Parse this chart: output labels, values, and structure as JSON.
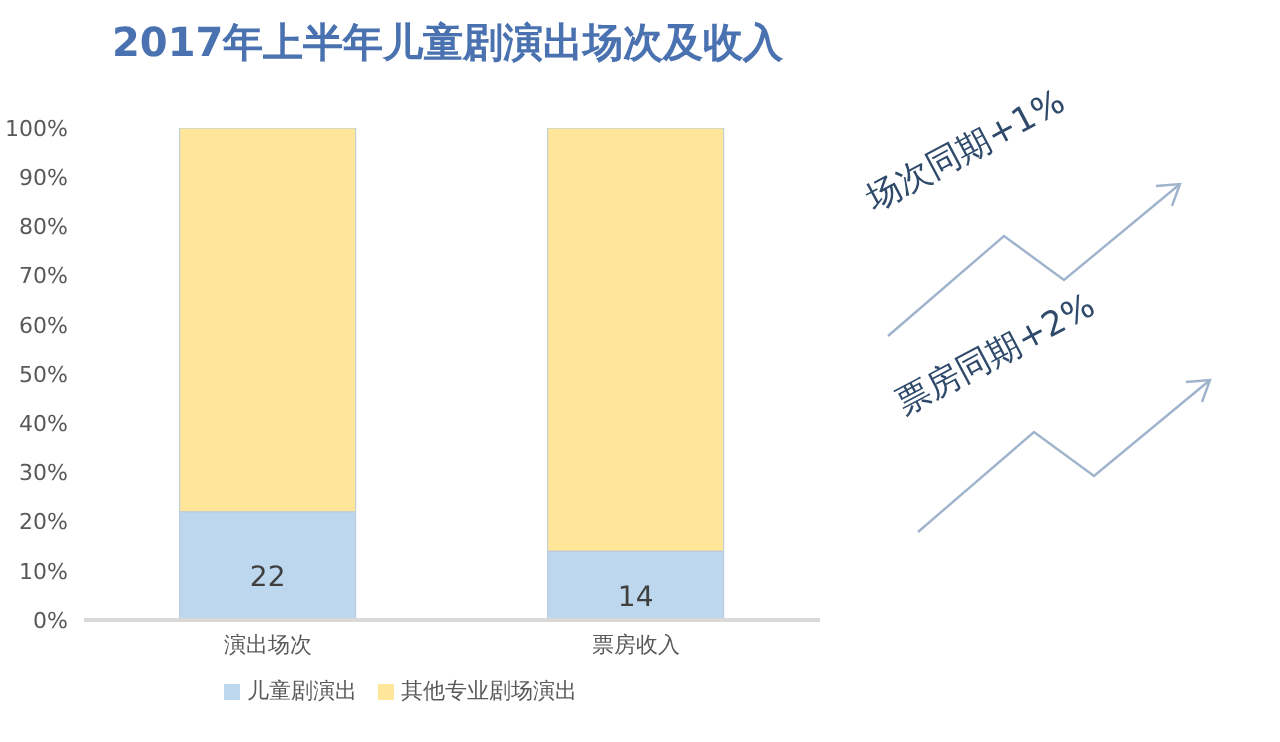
{
  "chart_data": {
    "type": "bar",
    "title": "2017年上半年儿童剧演出场次及收入",
    "categories": [
      "演出场次",
      "票房收入"
    ],
    "stacked": true,
    "series": [
      {
        "name": "儿童剧演出",
        "color": "#bdd7ee",
        "values": [
          22,
          14
        ],
        "value_labels": [
          "22",
          "14"
        ]
      },
      {
        "name": "其他专业剧场演出",
        "color": "#ffe699",
        "values": [
          78,
          86
        ]
      }
    ],
    "ylim": [
      0,
      100
    ],
    "yticks": [
      {
        "value": 0,
        "label": "0%"
      },
      {
        "value": 10,
        "label": "10%"
      },
      {
        "value": 20,
        "label": "20%"
      },
      {
        "value": 30,
        "label": "30%"
      },
      {
        "value": 40,
        "label": "40%"
      },
      {
        "value": 50,
        "label": "50%"
      },
      {
        "value": 60,
        "label": "60%"
      },
      {
        "value": 70,
        "label": "70%"
      },
      {
        "value": 80,
        "label": "80%"
      },
      {
        "value": 90,
        "label": "90%"
      },
      {
        "value": 100,
        "label": "100%"
      }
    ],
    "legend": "bottom",
    "annotations": [
      "场次同期+1%",
      "票房同期+2%"
    ]
  }
}
